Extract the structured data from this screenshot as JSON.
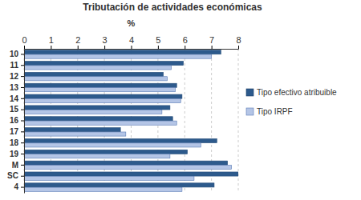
{
  "chart_data": {
    "type": "bar",
    "orientation": "horizontal",
    "title": "Tributación de actividades económicas",
    "x_label": "%",
    "categories": [
      "10",
      "11",
      "12",
      "13",
      "14",
      "15",
      "16",
      "17",
      "18",
      "19",
      "M",
      "SC",
      "4"
    ],
    "series": [
      {
        "name": "Tipo efectivo atribuible",
        "color": "#2d5a8c",
        "values": [
          7.35,
          5.95,
          5.2,
          5.7,
          5.9,
          5.45,
          5.55,
          3.6,
          7.2,
          6.1,
          7.6,
          8.0,
          7.1
        ]
      },
      {
        "name": "Tipo IRPF",
        "color": "#b4c5e6",
        "values": [
          7.0,
          5.5,
          5.35,
          5.65,
          5.85,
          5.15,
          5.7,
          3.8,
          6.6,
          5.45,
          7.75,
          6.35,
          5.9
        ]
      }
    ],
    "xlim": [
      0,
      8
    ],
    "xticks": [
      0,
      1,
      2,
      3,
      4,
      5,
      6,
      7,
      8
    ],
    "grid": true,
    "legend": "right"
  }
}
